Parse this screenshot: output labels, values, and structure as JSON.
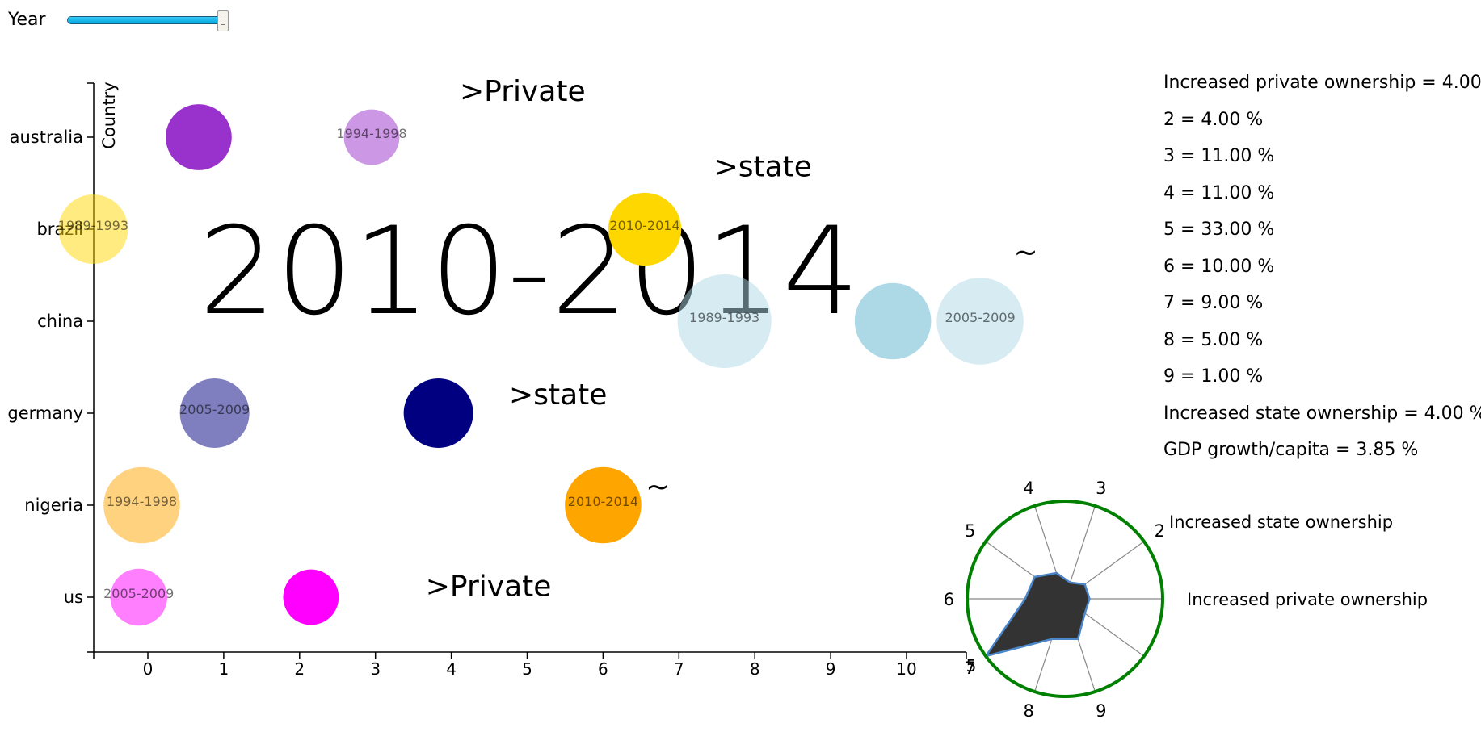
{
  "controls": {
    "year_label": "Year",
    "year_slider_fraction": 1.0
  },
  "info_panel": [
    "Increased private ownership = 4.00 %",
    "2 = 4.00 %",
    "3 = 11.00 %",
    "4 = 11.00 %",
    "5 = 33.00 %",
    "6 = 10.00 %",
    "7 = 9.00 %",
    "8 = 5.00 %",
    "9 = 1.00 %",
    "Increased state ownership = 4.00 %",
    "GDP growth/capita = 3.85 %"
  ],
  "chart_data": [
    {
      "type": "scatter",
      "title": "2010-2014",
      "ylabel": "Country",
      "xlabel": "",
      "categories": [
        "australia",
        "brazil",
        "china",
        "germany",
        "nigeria",
        "us"
      ],
      "x_ticks": [
        0,
        1,
        2,
        3,
        4,
        5,
        6,
        7,
        8,
        9,
        10
      ],
      "xlim": [
        -0.7,
        10.8
      ],
      "x_extra_tick_label": "5",
      "grid": false,
      "bubbles": [
        {
          "country": "australia",
          "x": 0.67,
          "period": "",
          "color": "#9932cc",
          "opacity": 1.0,
          "size": 0.95
        },
        {
          "country": "australia",
          "x": 2.95,
          "period": "1994-1998",
          "color": "#9932cc",
          "opacity": 0.5,
          "size": 0.8
        },
        {
          "country": "brazil",
          "x": -0.72,
          "period": "1989-1993",
          "color": "#ffd700",
          "opacity": 0.5,
          "size": 1.0
        },
        {
          "country": "brazil",
          "x": 6.55,
          "period": "2010-2014",
          "color": "#ffd700",
          "opacity": 1.0,
          "size": 1.05
        },
        {
          "country": "china",
          "x": 7.6,
          "period": "1989-1993",
          "color": "#add8e6",
          "opacity": 0.5,
          "size": 1.35
        },
        {
          "country": "china",
          "x": 9.82,
          "period": "",
          "color": "#add8e6",
          "opacity": 1.0,
          "size": 1.1
        },
        {
          "country": "china",
          "x": 10.97,
          "period": "2005-2009",
          "color": "#add8e6",
          "opacity": 0.5,
          "size": 1.25
        },
        {
          "country": "germany",
          "x": 0.88,
          "period": "2005-2009",
          "color": "#000080",
          "opacity": 0.5,
          "size": 1.0
        },
        {
          "country": "germany",
          "x": 3.83,
          "period": "",
          "color": "#000080",
          "opacity": 1.0,
          "size": 1.0
        },
        {
          "country": "nigeria",
          "x": -0.08,
          "period": "1994-1998",
          "color": "#ffa500",
          "opacity": 0.5,
          "size": 1.1
        },
        {
          "country": "nigeria",
          "x": 6.0,
          "period": "2010-2014",
          "color": "#ffa500",
          "opacity": 1.0,
          "size": 1.1
        },
        {
          "country": "us",
          "x": -0.12,
          "period": "2005-2009",
          "color": "#ff00ff",
          "opacity": 0.5,
          "size": 0.82
        },
        {
          "country": "us",
          "x": 2.15,
          "period": "",
          "color": "#ff00ff",
          "opacity": 1.0,
          "size": 0.8
        }
      ],
      "annotations": [
        {
          "text": ">Private",
          "country": "australia",
          "x": 4.75,
          "dy": -0.5
        },
        {
          "text": ">state",
          "country": "brazil",
          "x": 8.1,
          "dy": -0.68
        },
        {
          "text": "~",
          "country": "brazil",
          "x": 12.05,
          "dy": 0.25
        },
        {
          "text": ">state",
          "country": "germany",
          "x": 5.4,
          "dy": -0.2
        },
        {
          "text": "~",
          "country": "nigeria",
          "x": 7.2,
          "dy": -0.2
        },
        {
          "text": ">Private",
          "country": "us",
          "x": 4.3,
          "dy": -0.12
        }
      ]
    },
    {
      "type": "radar",
      "axes": [
        "Increased private ownership",
        "2",
        "3",
        "4",
        "5",
        "6",
        "7",
        "8",
        "9",
        "Increased state ownership"
      ],
      "values": [
        4,
        4,
        11,
        11,
        33,
        10,
        9,
        5,
        1,
        4
      ],
      "rmax": 33,
      "colors": {
        "fill": "#333333",
        "stroke": "#4a86c8",
        "ring": "#008000",
        "spokes": "#888888"
      }
    }
  ]
}
